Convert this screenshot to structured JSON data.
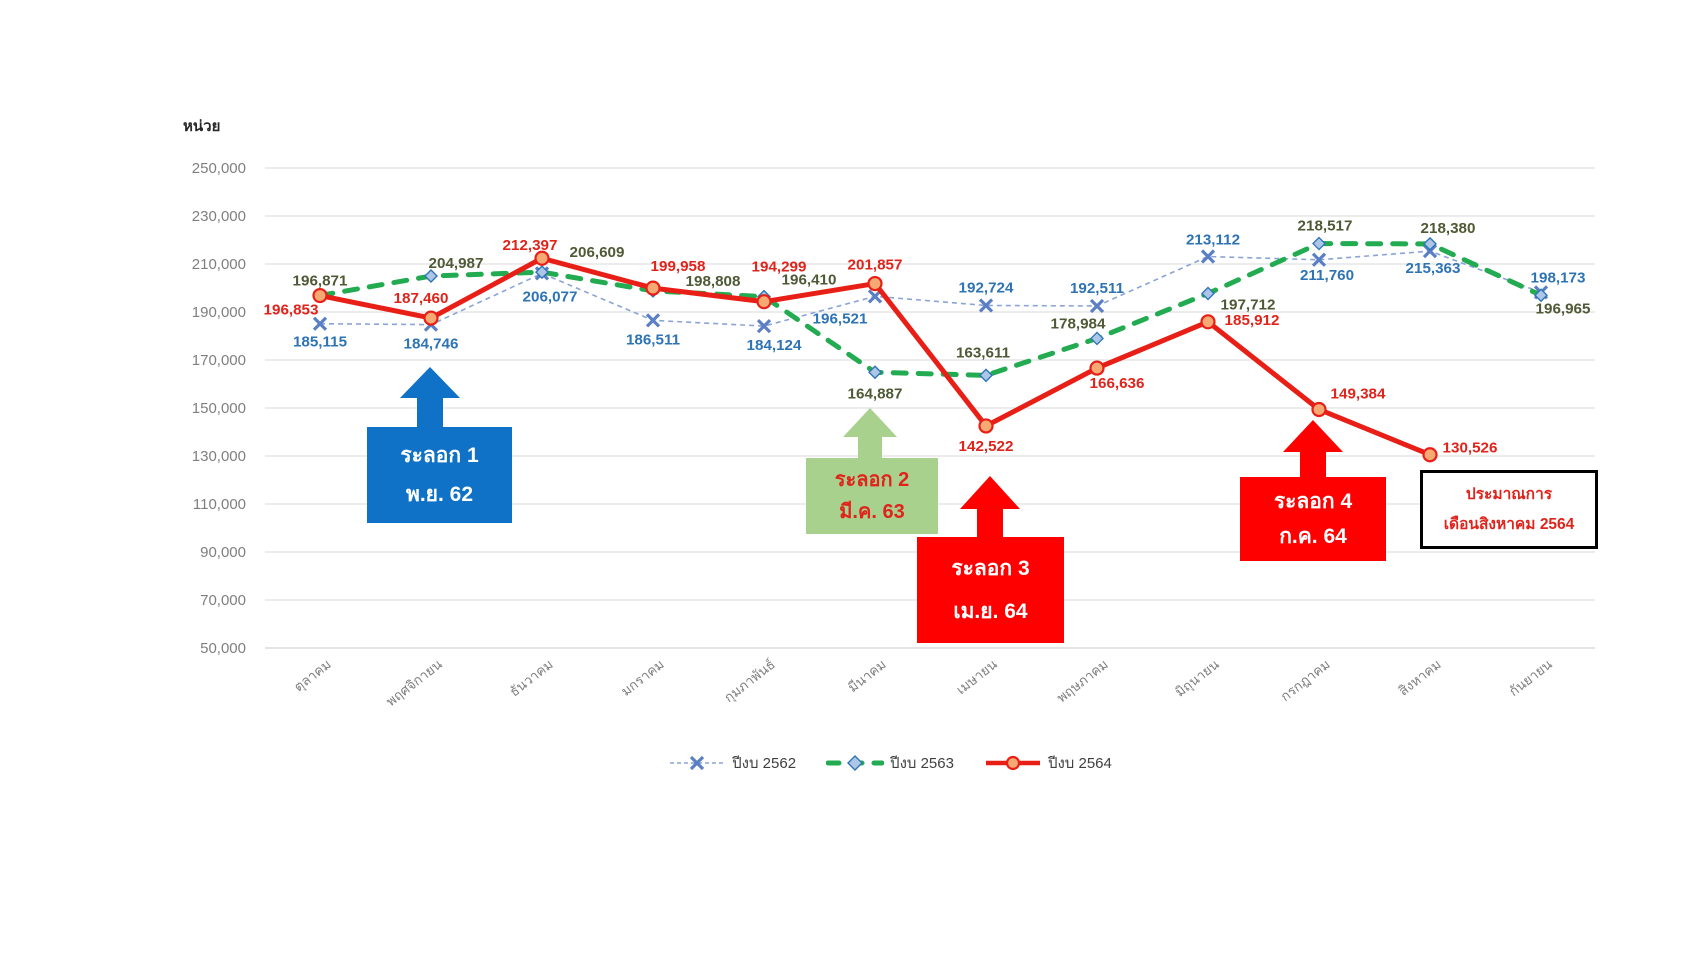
{
  "chart": {
    "unit_label": "หน่วย"
  },
  "chart_data": {
    "type": "line",
    "title": "",
    "ylabel": "หน่วย",
    "ylim": [
      50000,
      250000
    ],
    "ytick_step": 20000,
    "grid": "horizontal",
    "legend_position": "bottom-center",
    "categories": [
      "ตุลาคม",
      "พฤศจิกายน",
      "ธันวาคม",
      "มกราคม",
      "กุมภาพันธ์",
      "มีนาคม",
      "เมษายน",
      "พฤษภาคม",
      "มิถุนายน",
      "กรกฎาคม",
      "สิงหาคม",
      "กันยายน"
    ],
    "series": [
      {
        "name": "ปีงบ 2562",
        "line_style": "dashed-thin",
        "marker": "x",
        "color": "#8aa4d6",
        "marker_color": "#5b7fc4",
        "label_color": "#2e74b5",
        "values": [
          185115,
          184746,
          206077,
          186511,
          184124,
          196521,
          192724,
          192511,
          213112,
          211760,
          215363,
          198173
        ],
        "label_offsets": [
          [
            0,
            23
          ],
          [
            0,
            24
          ],
          [
            8,
            28
          ],
          [
            0,
            24
          ],
          [
            10,
            24
          ],
          [
            -35,
            27
          ],
          [
            0,
            -13
          ],
          [
            0,
            -13
          ],
          [
            5,
            -12
          ],
          [
            8,
            20
          ],
          [
            3,
            22
          ],
          [
            17,
            -10
          ]
        ]
      },
      {
        "name": "ปีงบ 2563",
        "line_style": "dashed-thick",
        "marker": "diamond",
        "color": "#22ab50",
        "marker_fill": "#adc6e8",
        "marker_color": "#2e75b6",
        "label_color": "#4e5a35",
        "values": [
          196871,
          204987,
          206609,
          198808,
          196410,
          164887,
          163611,
          178984,
          197712,
          218517,
          218380,
          196965
        ],
        "label_offsets": [
          [
            0,
            -10
          ],
          [
            25,
            -8
          ],
          [
            55,
            -15
          ],
          [
            60,
            -5
          ],
          [
            45,
            -12
          ],
          [
            0,
            26
          ],
          [
            -3,
            -18
          ],
          [
            -19,
            -10
          ],
          [
            40,
            16
          ],
          [
            6,
            -13
          ],
          [
            18,
            -11
          ],
          [
            22,
            18
          ]
        ]
      },
      {
        "name": "ปีงบ 2564",
        "line_style": "solid",
        "marker": "circle",
        "color": "#e81f17",
        "marker_fill": "#f6a973",
        "label_color": "#e0231b",
        "values": [
          196853,
          187460,
          212397,
          199958,
          194299,
          201857,
          142522,
          166636,
          185912,
          149384,
          130526
        ],
        "label_offsets": [
          [
            -29,
            19
          ],
          [
            -10,
            -15
          ],
          [
            -12,
            -8
          ],
          [
            25,
            -17
          ],
          [
            15,
            -30
          ],
          [
            0,
            -14
          ],
          [
            0,
            25
          ],
          [
            20,
            20
          ],
          [
            44,
            3
          ],
          [
            39,
            -11
          ],
          [
            40,
            -2
          ]
        ]
      }
    ]
  },
  "annotations": {
    "wave1": {
      "line1": "ระลอก 1",
      "line2": "พ.ย. 62",
      "bg": "#0f72c6",
      "text_color": "#ffffff"
    },
    "wave2": {
      "line1": "ระลอก 2",
      "line2": "มี.ค. 63",
      "bg": "#a9d18e",
      "text_color": "#e0231b"
    },
    "wave3": {
      "line1": "ระลอก 3",
      "line2": "เม.ย. 64",
      "bg": "#fe0000",
      "text_color": "#ffffff"
    },
    "wave4": {
      "line1": "ระลอก 4",
      "line2": "ก.ค. 64",
      "bg": "#fe0000",
      "text_color": "#ffffff"
    },
    "estimate": {
      "line1": "ประมาณการ",
      "line2": "เดือนสิงหาคม 2564",
      "text_color": "#e0231b",
      "border_color": "#000000"
    }
  },
  "colors": {
    "grid": "#d9d9d9",
    "axis_line": "#c9c9c9",
    "axis_text": "#7f7f7f",
    "unit_text": "#262626",
    "legend_text": "#404040"
  }
}
